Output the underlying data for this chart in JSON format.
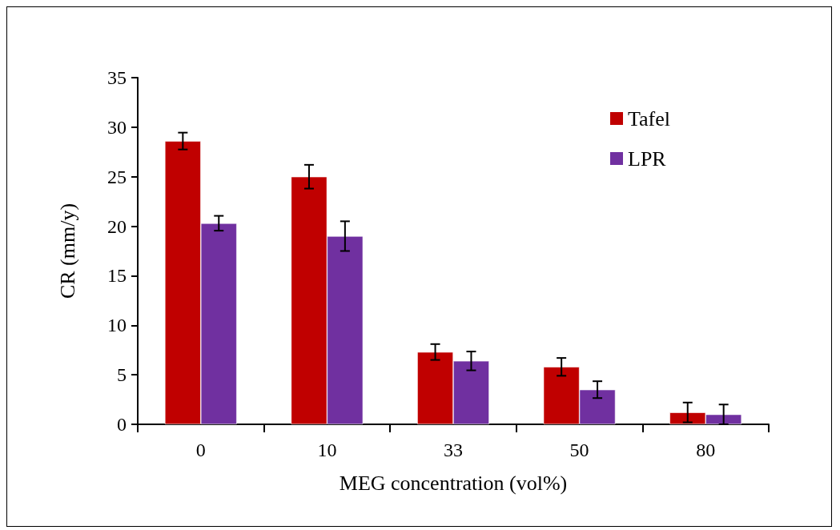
{
  "chart_data": {
    "type": "bar",
    "xlabel": "MEG concentration (vol%)",
    "ylabel": "CR (mm/y)",
    "categories": [
      "0",
      "10",
      "33",
      "50",
      "80"
    ],
    "series": [
      {
        "name": "Tafel",
        "color": "#c00000",
        "values": [
          28.6,
          25.0,
          7.3,
          5.8,
          1.2
        ],
        "errors": [
          0.85,
          1.2,
          0.8,
          0.9,
          1.0
        ]
      },
      {
        "name": "LPR",
        "color": "#7030a0",
        "values": [
          20.3,
          19.0,
          6.4,
          3.5,
          1.0
        ],
        "errors": [
          0.75,
          1.5,
          0.95,
          0.85,
          1.0
        ]
      }
    ],
    "ylim": [
      0,
      35
    ],
    "yticks": [
      0,
      5,
      10,
      15,
      20,
      25,
      30,
      35
    ],
    "grid": false,
    "legend": "top right"
  }
}
